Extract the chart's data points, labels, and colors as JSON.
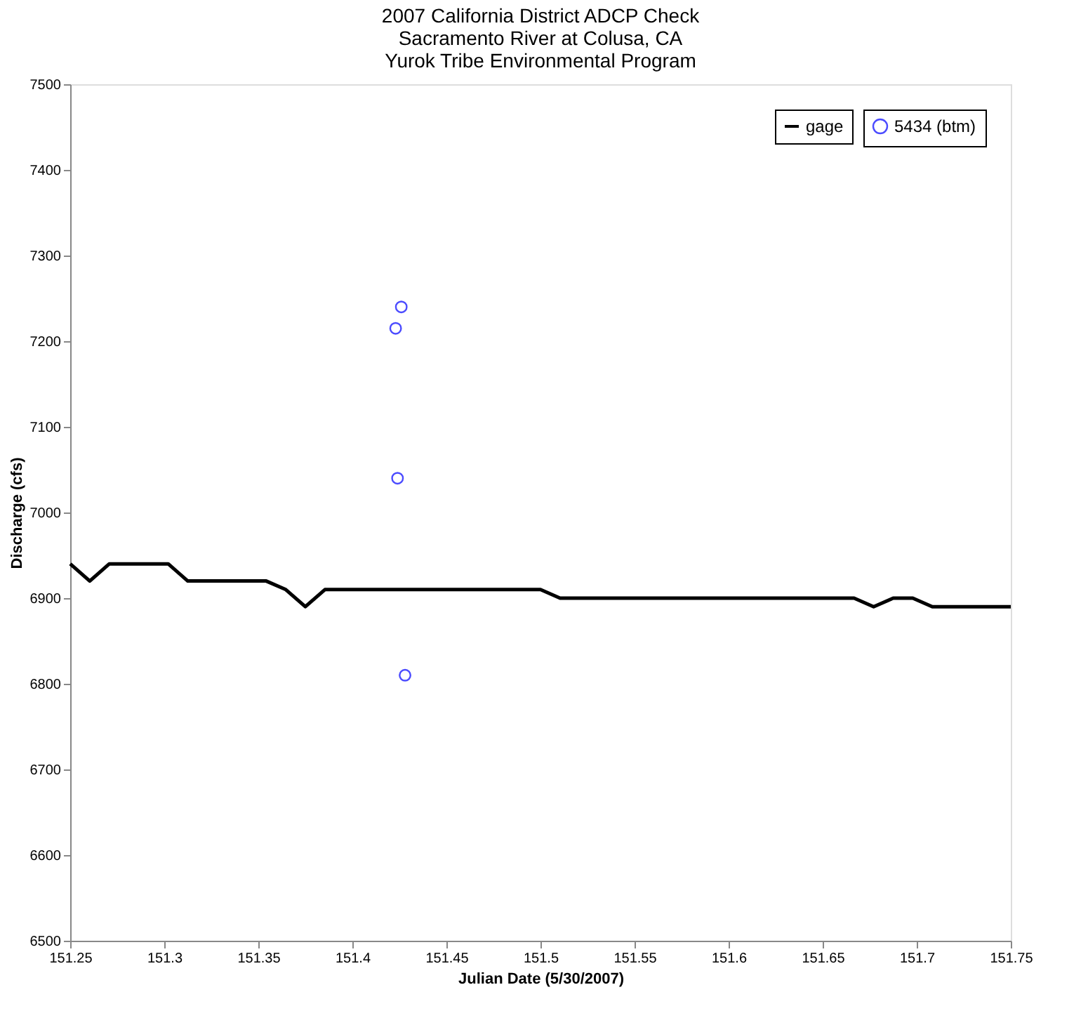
{
  "chart_data": {
    "type": "line",
    "title": "2007 California District ADCP Check\nSacramento River at Colusa, CA\nYurok Tribe Environmental Program",
    "xlabel": "Julian Date (5/30/2007)",
    "ylabel": "Discharge (cfs)",
    "xlim": [
      151.25,
      151.75
    ],
    "xticks": [
      151.25,
      151.3,
      151.35,
      151.4,
      151.45,
      151.5,
      151.55,
      151.6,
      151.65,
      151.7,
      151.75
    ],
    "ylim": [
      6500,
      7500
    ],
    "yticks": [
      6500,
      6600,
      6700,
      6800,
      6900,
      7000,
      7100,
      7200,
      7300,
      7400,
      7500
    ],
    "grid": false,
    "legend": "top right",
    "series": [
      {
        "name": "gage",
        "color": "#000000",
        "line_style": "solid",
        "marker": "none",
        "x": [
          151.25,
          151.2604,
          151.2708,
          151.3021,
          151.3125,
          151.3542,
          151.3646,
          151.375,
          151.3854,
          151.5,
          151.5104,
          151.6667,
          151.6771,
          151.6875,
          151.6979,
          151.7083,
          151.75
        ],
        "values": [
          6940,
          6920,
          6940,
          6940,
          6920,
          6920,
          6910,
          6890,
          6910,
          6910,
          6900,
          6900,
          6890,
          6900,
          6900,
          6890,
          6890
        ]
      },
      {
        "name": "5434 (btm)",
        "type": "scatter",
        "color": "#0000ff",
        "marker": "circle",
        "x": [
          151.426,
          151.423,
          151.424,
          151.428
        ],
        "values": [
          7240,
          7215,
          7040,
          6810
        ]
      }
    ]
  }
}
